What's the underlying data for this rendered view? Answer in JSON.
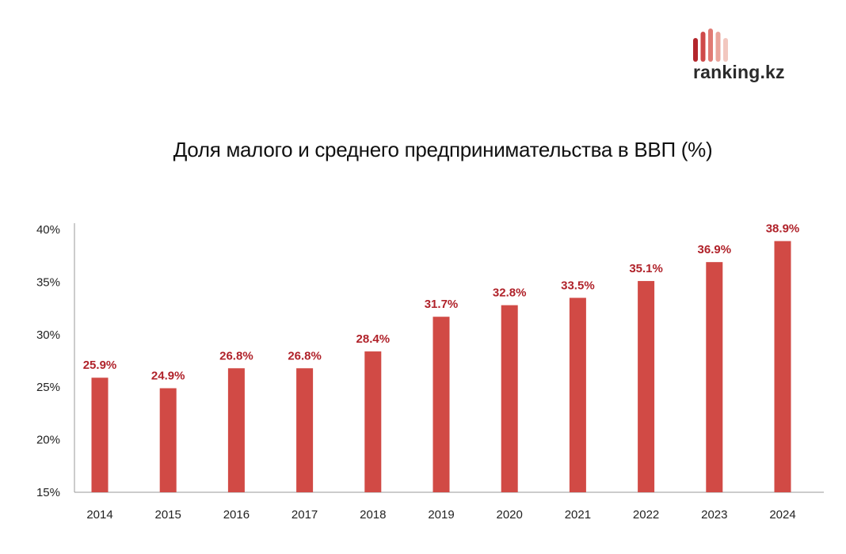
{
  "brand": {
    "name": "ranking.kz",
    "logo_icon": "bar-logo-icon",
    "logo_colors": [
      "#b3262c",
      "#cf4a4a",
      "#e07a74",
      "#eaa59c",
      "#f2c7bf"
    ]
  },
  "colors": {
    "bar": "#d14a45",
    "label": "#b0222a",
    "axis": "#999999"
  },
  "chart_data": {
    "type": "bar",
    "title": "Доля малого и среднего предпринимательства в ВВП (%)",
    "categories": [
      "2014",
      "2015",
      "2016",
      "2017",
      "2018",
      "2019",
      "2020",
      "2021",
      "2022",
      "2023",
      "2024"
    ],
    "values": [
      25.9,
      24.9,
      26.8,
      26.8,
      28.4,
      31.7,
      32.8,
      33.5,
      35.1,
      36.9,
      38.9
    ],
    "data_labels": [
      "25.9%",
      "24.9%",
      "26.8%",
      "26.8%",
      "28.4%",
      "31.7%",
      "32.8%",
      "33.5%",
      "35.1%",
      "36.9%",
      "38.9%"
    ],
    "yticks": [
      "15%",
      "20%",
      "25%",
      "30%",
      "35%",
      "40%"
    ],
    "ytick_values": [
      15,
      20,
      25,
      30,
      35,
      40
    ],
    "ylim": [
      15,
      40
    ],
    "xlabel": "",
    "ylabel": "",
    "grid": false,
    "legend": "none"
  }
}
